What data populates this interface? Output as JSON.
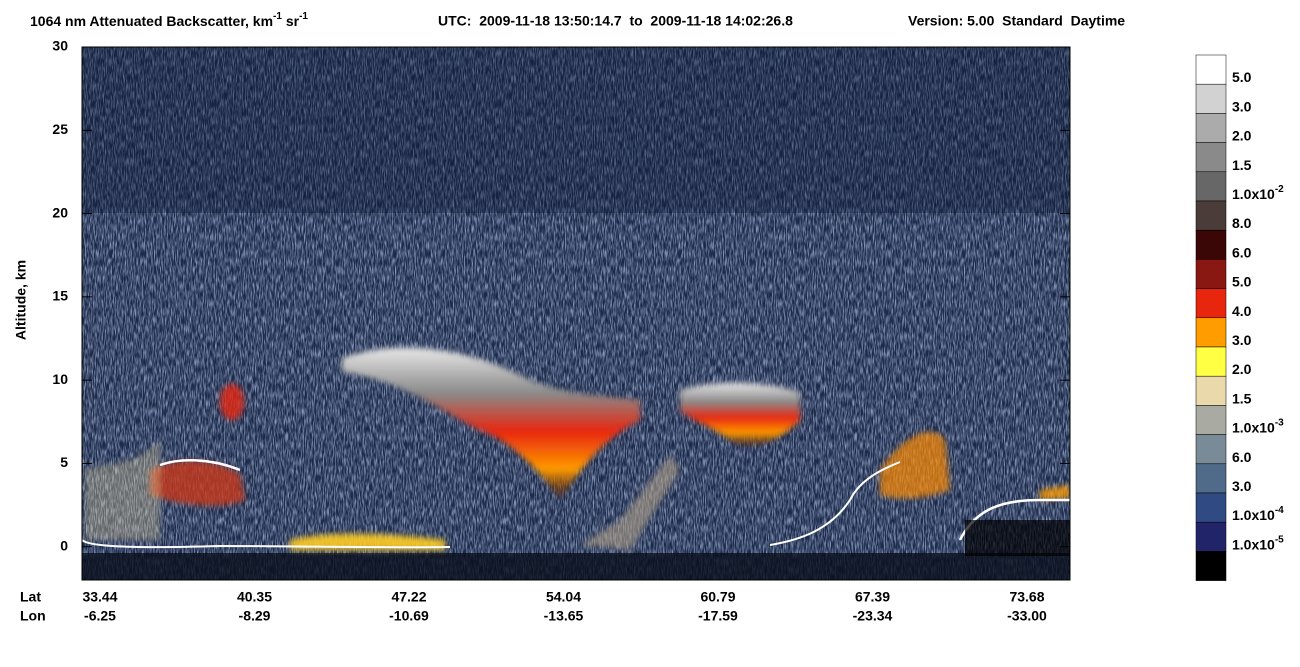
{
  "chart_data": {
    "type": "curtain",
    "title": {
      "main": "1064 nm Attenuated Backscatter, km",
      "exp1": "-1",
      "mid": " sr",
      "exp2": "-1",
      "utc": "UTC:  2009-11-18 13:50:14.7  to  2009-11-18 14:02:26.8",
      "version": "Version: 5.00  Standard  Daytime"
    },
    "ylabel": "Altitude, km",
    "ylim": [
      -2,
      30
    ],
    "yticks": [
      0,
      5,
      10,
      15,
      20,
      25,
      30
    ],
    "x_rows": {
      "lat_label": "Lat",
      "lon_label": "Lon",
      "lat": [
        "33.44",
        "40.35",
        "47.22",
        "54.04",
        "60.79",
        "67.39",
        "73.68"
      ],
      "lon": [
        "-6.25",
        "-8.29",
        "-10.69",
        "-13.65",
        "-17.59",
        "-23.34",
        "-33.00"
      ]
    },
    "colorbar": {
      "colors": [
        "#ffffff",
        "#d2d2d2",
        "#ababab",
        "#8a8a8a",
        "#676767",
        "#4a3c38",
        "#3a0606",
        "#8a1812",
        "#e8260e",
        "#ff9c00",
        "#ffff44",
        "#ead9aa",
        "#a9aba2",
        "#7a8b98",
        "#506a8a",
        "#304a84",
        "#22246a",
        "#000000"
      ],
      "labels": [
        {
          "text": "5.0"
        },
        {
          "text": "3.0"
        },
        {
          "text": "2.0"
        },
        {
          "text": "1.5"
        },
        {
          "text": "1.0x10",
          "exp": "-2"
        },
        {
          "text": "8.0"
        },
        {
          "text": "6.0"
        },
        {
          "text": "5.0"
        },
        {
          "text": "4.0"
        },
        {
          "text": "3.0"
        },
        {
          "text": "2.0"
        },
        {
          "text": "1.5"
        },
        {
          "text": "1.0x10",
          "exp": "-3"
        },
        {
          "text": "6.0"
        },
        {
          "text": "3.0"
        },
        {
          "text": "1.0x10",
          "exp": "-4"
        },
        {
          "text": "1.0x10",
          "exp": "-5"
        }
      ]
    }
  }
}
